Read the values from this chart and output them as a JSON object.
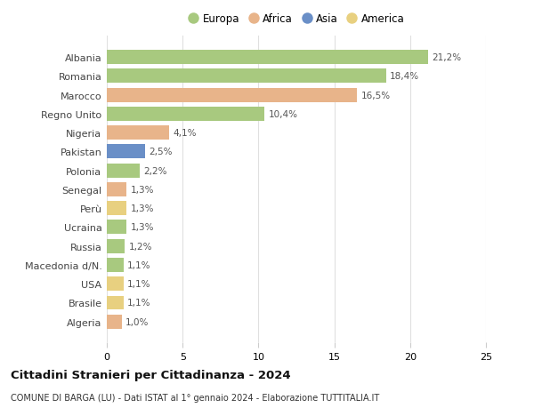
{
  "categories": [
    "Albania",
    "Romania",
    "Marocco",
    "Regno Unito",
    "Nigeria",
    "Pakistan",
    "Polonia",
    "Senegal",
    "Perù",
    "Ucraina",
    "Russia",
    "Macedonia d/N.",
    "USA",
    "Brasile",
    "Algeria"
  ],
  "values": [
    21.2,
    18.4,
    16.5,
    10.4,
    4.1,
    2.5,
    2.2,
    1.3,
    1.3,
    1.3,
    1.2,
    1.1,
    1.1,
    1.1,
    1.0
  ],
  "labels": [
    "21,2%",
    "18,4%",
    "16,5%",
    "10,4%",
    "4,1%",
    "2,5%",
    "2,2%",
    "1,3%",
    "1,3%",
    "1,3%",
    "1,2%",
    "1,1%",
    "1,1%",
    "1,1%",
    "1,0%"
  ],
  "colors": [
    "#a8c97f",
    "#a8c97f",
    "#e8b48a",
    "#a8c97f",
    "#e8b48a",
    "#6a8fc7",
    "#a8c97f",
    "#e8b48a",
    "#e8d080",
    "#a8c97f",
    "#a8c97f",
    "#a8c97f",
    "#e8d080",
    "#e8d080",
    "#e8b48a"
  ],
  "legend_labels": [
    "Europa",
    "Africa",
    "Asia",
    "America"
  ],
  "legend_colors": [
    "#a8c97f",
    "#e8b48a",
    "#6a8fc7",
    "#e8d080"
  ],
  "title": "Cittadini Stranieri per Cittadinanza - 2024",
  "subtitle": "COMUNE DI BARGA (LU) - Dati ISTAT al 1° gennaio 2024 - Elaborazione TUTTITALIA.IT",
  "xlim": [
    0,
    25
  ],
  "xticks": [
    0,
    5,
    10,
    15,
    20,
    25
  ],
  "bg_color": "#ffffff",
  "grid_color": "#e0e0e0",
  "bar_height": 0.75
}
